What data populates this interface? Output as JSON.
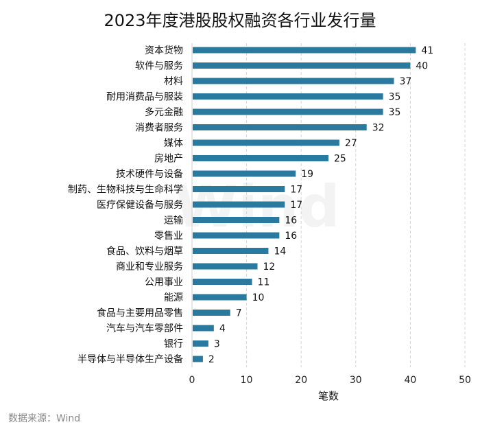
{
  "chart_data": {
    "type": "bar",
    "orientation": "horizontal",
    "title": "2023年度港股股权融资各行业发行量",
    "xlabel": "笔数",
    "ylabel": "",
    "xlim": [
      0,
      50
    ],
    "xticks": [
      0,
      10,
      20,
      30,
      40,
      50
    ],
    "grid": "vertical-dashed",
    "categories": [
      "资本货物",
      "软件与服务",
      "材料",
      "耐用消费品与服装",
      "多元金融",
      "消费者服务",
      "媒体",
      "房地产",
      "技术硬件与设备",
      "制药、生物科技与生命科学",
      "医疗保健设备与服务",
      "运输",
      "零售业",
      "食品、饮料与烟草",
      "商业和专业服务",
      "公用事业",
      "能源",
      "食品与主要用品零售",
      "汽车与汽车零部件",
      "银行",
      "半导体与半导体生产设备"
    ],
    "values": [
      41,
      40,
      37,
      35,
      35,
      32,
      27,
      25,
      19,
      17,
      17,
      16,
      16,
      14,
      12,
      11,
      10,
      7,
      4,
      3,
      2
    ],
    "bar_color": "#2a7aa0",
    "source": "数据来源：Wind",
    "watermark": "Wind"
  }
}
